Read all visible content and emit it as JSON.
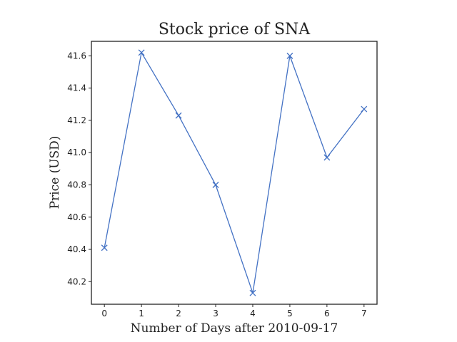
{
  "chart_data": {
    "type": "line",
    "title": "Stock price of SNA",
    "xlabel": "Number of Days after 2010-09-17",
    "ylabel": "Price (USD)",
    "x": [
      0,
      1,
      2,
      3,
      4,
      5,
      6,
      7
    ],
    "series": [
      {
        "values": [
          40.41,
          41.62,
          41.23,
          40.8,
          40.13,
          41.6,
          40.97,
          41.27
        ]
      }
    ],
    "x_ticks": [
      "0",
      "1",
      "2",
      "3",
      "4",
      "5",
      "6",
      "7"
    ],
    "y_ticks": [
      "40.2",
      "40.4",
      "40.6",
      "40.8",
      "41.0",
      "41.2",
      "41.4",
      "41.6"
    ],
    "xlim": [
      -0.35,
      7.35
    ],
    "ylim": [
      40.06,
      41.69
    ],
    "grid": false,
    "marker": "x",
    "colors": {
      "series": "#4472c4",
      "axes": "#222222"
    }
  }
}
